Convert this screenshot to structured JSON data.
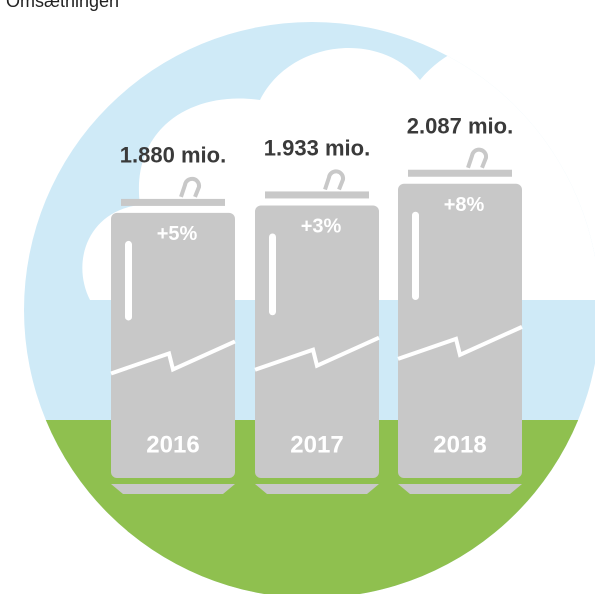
{
  "chart_data": {
    "type": "bar",
    "title": "Omsætningen",
    "categories": [
      "2016",
      "2017",
      "2018"
    ],
    "values": [
      1880,
      1933,
      2087
    ],
    "value_labels": [
      "1.880 mio.",
      "1.933 mio.",
      "2.087 mio."
    ],
    "changes": [
      5,
      3,
      8
    ],
    "change_labels": [
      "+5%",
      "+3%",
      "+8%"
    ],
    "color": "#c8c8c8"
  }
}
